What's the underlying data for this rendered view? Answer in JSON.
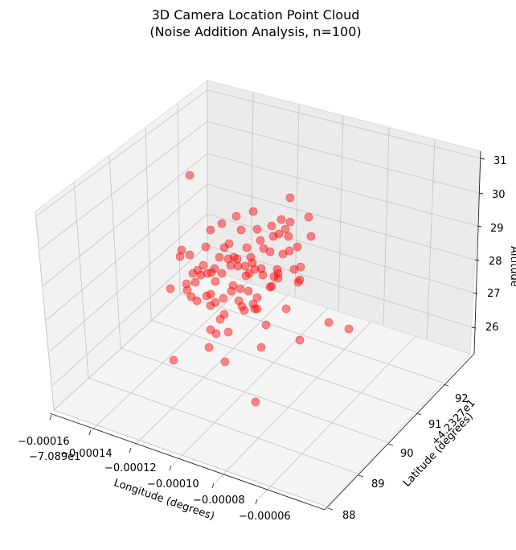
{
  "chart_data": {
    "type": "scatter3d",
    "title": "3D Camera Location Point Cloud",
    "subtitle": "(Noise Addition Analysis, n=100)",
    "xlabel": "Longitude (degrees)",
    "ylabel": "Latitude (degrees)",
    "zlabel": "Altitude",
    "x_offset_label": "−7.089e1",
    "y_offset_label": "+4.2327e1",
    "x_ticks": [
      "−0.00016",
      "−0.00014",
      "−0.00012",
      "−0.00010",
      "−0.00008",
      "−0.00006"
    ],
    "y_ticks": [
      "88",
      "89",
      "90",
      "91",
      "92"
    ],
    "z_ticks": [
      "26",
      "27",
      "28",
      "29",
      "30",
      "31"
    ],
    "marker_color": "#ff0000",
    "marker_alpha": 0.45,
    "grid": true,
    "points_screen": [
      [
        236,
        218
      ],
      [
        361,
        246
      ],
      [
        315,
        263
      ],
      [
        294,
        269
      ],
      [
        350,
        273
      ],
      [
        384,
        270
      ],
      [
        276,
        278
      ],
      [
        338,
        281
      ],
      [
        361,
        276
      ],
      [
        300,
        286
      ],
      [
        262,
        286
      ],
      [
        320,
        285
      ],
      [
        355,
        285
      ],
      [
        387,
        294
      ],
      [
        347,
        291
      ],
      [
        340,
        294
      ],
      [
        359,
        294
      ],
      [
        324,
        299
      ],
      [
        285,
        303
      ],
      [
        279,
        308
      ],
      [
        256,
        307
      ],
      [
        226,
        311
      ],
      [
        307,
        308
      ],
      [
        370,
        307
      ],
      [
        328,
        309
      ],
      [
        236,
        317
      ],
      [
        224,
        319
      ],
      [
        291,
        320
      ],
      [
        312,
        320
      ],
      [
        273,
        320
      ],
      [
        360,
        312
      ],
      [
        352,
        316
      ],
      [
        336,
        313
      ],
      [
        284,
        322
      ],
      [
        295,
        322
      ],
      [
        314,
        327
      ],
      [
        253,
        330
      ],
      [
        296,
        331
      ],
      [
        267,
        334
      ],
      [
        287,
        330
      ],
      [
        246,
        336
      ],
      [
        325,
        334
      ],
      [
        305,
        331
      ],
      [
        374,
        332
      ],
      [
        317,
        335
      ],
      [
        366,
        335
      ],
      [
        240,
        340
      ],
      [
        258,
        340
      ],
      [
        276,
        340
      ],
      [
        310,
        340
      ],
      [
        345,
        335
      ],
      [
        263,
        339
      ],
      [
        346,
        340
      ],
      [
        250,
        342
      ],
      [
        327,
        342
      ],
      [
        341,
        344
      ],
      [
        268,
        350
      ],
      [
        373,
        348
      ],
      [
        290,
        355
      ],
      [
        346,
        346
      ],
      [
        243,
        351
      ],
      [
        371,
        351
      ],
      [
        306,
        343
      ],
      [
        232,
        353
      ],
      [
        338,
        356
      ],
      [
        212,
        359
      ],
      [
        262,
        366
      ],
      [
        336,
        357
      ],
      [
        299,
        359
      ],
      [
        233,
        361
      ],
      [
        309,
        362
      ],
      [
        257,
        368
      ],
      [
        320,
        370
      ],
      [
        238,
        369
      ],
      [
        268,
        376
      ],
      [
        278,
        371
      ],
      [
        297,
        374
      ],
      [
        315,
        378
      ],
      [
        320,
        384
      ],
      [
        356,
        384
      ],
      [
        279,
        391
      ],
      [
        304,
        386
      ],
      [
        317,
        384
      ],
      [
        409,
        401
      ],
      [
        274,
        397
      ],
      [
        331,
        404
      ],
      [
        434,
        409
      ],
      [
        262,
        410
      ],
      [
        269,
        415
      ],
      [
        284,
        413
      ],
      [
        373,
        423
      ],
      [
        260,
        432
      ],
      [
        325,
        432
      ],
      [
        216,
        448
      ],
      [
        280,
        450
      ],
      [
        318,
        500
      ],
      [
        245,
        374
      ],
      [
        288,
        362
      ],
      [
        301,
        381
      ],
      [
        262,
        380
      ]
    ]
  }
}
